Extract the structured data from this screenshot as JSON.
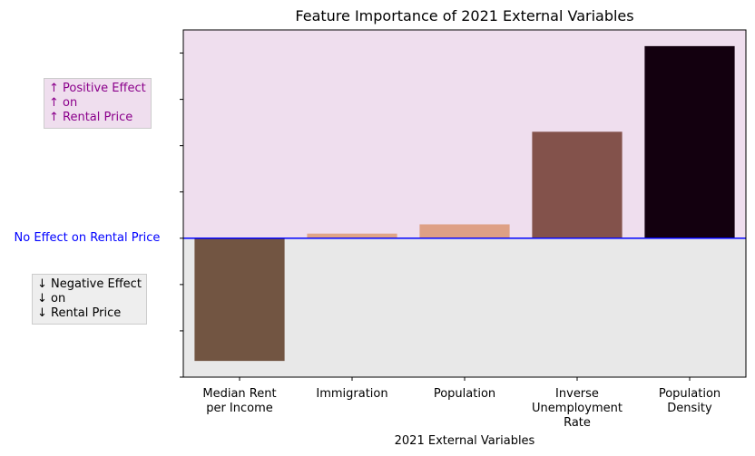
{
  "chart_data": {
    "type": "bar",
    "title": "Feature Importance of 2021 External Variables",
    "xlabel": "2021 External Variables",
    "ylabel": "",
    "categories": [
      [
        "Median Rent",
        "per Income"
      ],
      [
        "Immigration"
      ],
      [
        "Population"
      ],
      [
        "Inverse",
        "Unemployment",
        "Rate"
      ],
      [
        "Population",
        "Density"
      ]
    ],
    "values": [
      -0.53,
      0.02,
      0.06,
      0.46,
      0.83
    ],
    "bar_colors": [
      "#725542",
      "#e0a588",
      "#dea085",
      "#83524b",
      "#13000f"
    ],
    "ylim": [
      -0.6,
      0.9
    ],
    "yticks": [
      -0.6,
      -0.4,
      -0.2,
      0.0,
      0.2,
      0.4,
      0.6,
      0.8
    ],
    "grid": false,
    "zero_line": {
      "label": "No Effect on Rental Price",
      "color": "#0000ff"
    },
    "positive_region_color": "#efdeee",
    "negative_region_color": "#e8e8e8",
    "positive_annotation": [
      "↑ Positive Effect",
      "↑ on",
      "↑ Rental Price"
    ],
    "positive_annotation_color": "#8b008b",
    "negative_annotation": [
      "↓ Negative Effect",
      "↓ on",
      "↓ Rental Price"
    ],
    "negative_annotation_color": "#000000"
  }
}
